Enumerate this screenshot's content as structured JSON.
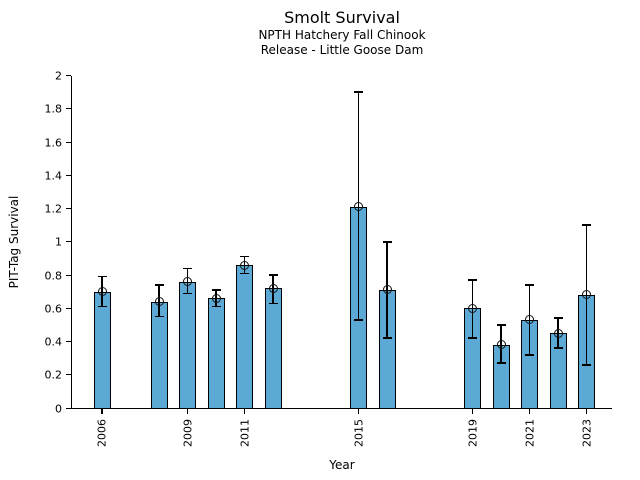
{
  "chart_data": {
    "type": "bar",
    "title": "Smolt Survival",
    "subtitle_line1": "NPTH Hatchery Fall Chinook",
    "subtitle_line2": "Release - Little Goose Dam",
    "xlabel": "Year",
    "ylabel": "PIT-Tag Survival",
    "ylim": [
      0,
      2
    ],
    "ytick_labels": [
      "0",
      "0.2",
      "0.4",
      "0.6",
      "0.8",
      "1",
      "1.2",
      "1.4",
      "1.6",
      "1.8",
      "2"
    ],
    "ytick_values": [
      0,
      0.2,
      0.4,
      0.6,
      0.8,
      1,
      1.2,
      1.4,
      1.6,
      1.8,
      2
    ],
    "xtick_labels": [
      "2006",
      "2009",
      "2011",
      "2015",
      "2019",
      "2021",
      "2023"
    ],
    "xtick_values": [
      2006,
      2009,
      2011,
      2015,
      2019,
      2021,
      2023
    ],
    "grid": false,
    "legend": "none",
    "bar_color": "#5BA9D4",
    "bar_edge_color": "#000000",
    "error_color": "#000000",
    "marker": "open-circle",
    "series": [
      {
        "name": "PIT-Tag Survival",
        "x": [
          2006,
          2008,
          2009,
          2010,
          2011,
          2012,
          2015,
          2016,
          2019,
          2020,
          2021,
          2022,
          2023
        ],
        "values": [
          0.7,
          0.64,
          0.76,
          0.66,
          0.86,
          0.72,
          1.21,
          0.71,
          0.6,
          0.38,
          0.53,
          0.45,
          0.68
        ],
        "err_low": [
          0.61,
          0.55,
          0.69,
          0.61,
          0.81,
          0.63,
          0.53,
          0.42,
          0.42,
          0.27,
          0.32,
          0.36,
          0.26
        ],
        "err_high": [
          0.79,
          0.74,
          0.84,
          0.71,
          0.91,
          0.8,
          1.9,
          1.0,
          0.77,
          0.5,
          0.74,
          0.54,
          1.1
        ]
      }
    ]
  }
}
